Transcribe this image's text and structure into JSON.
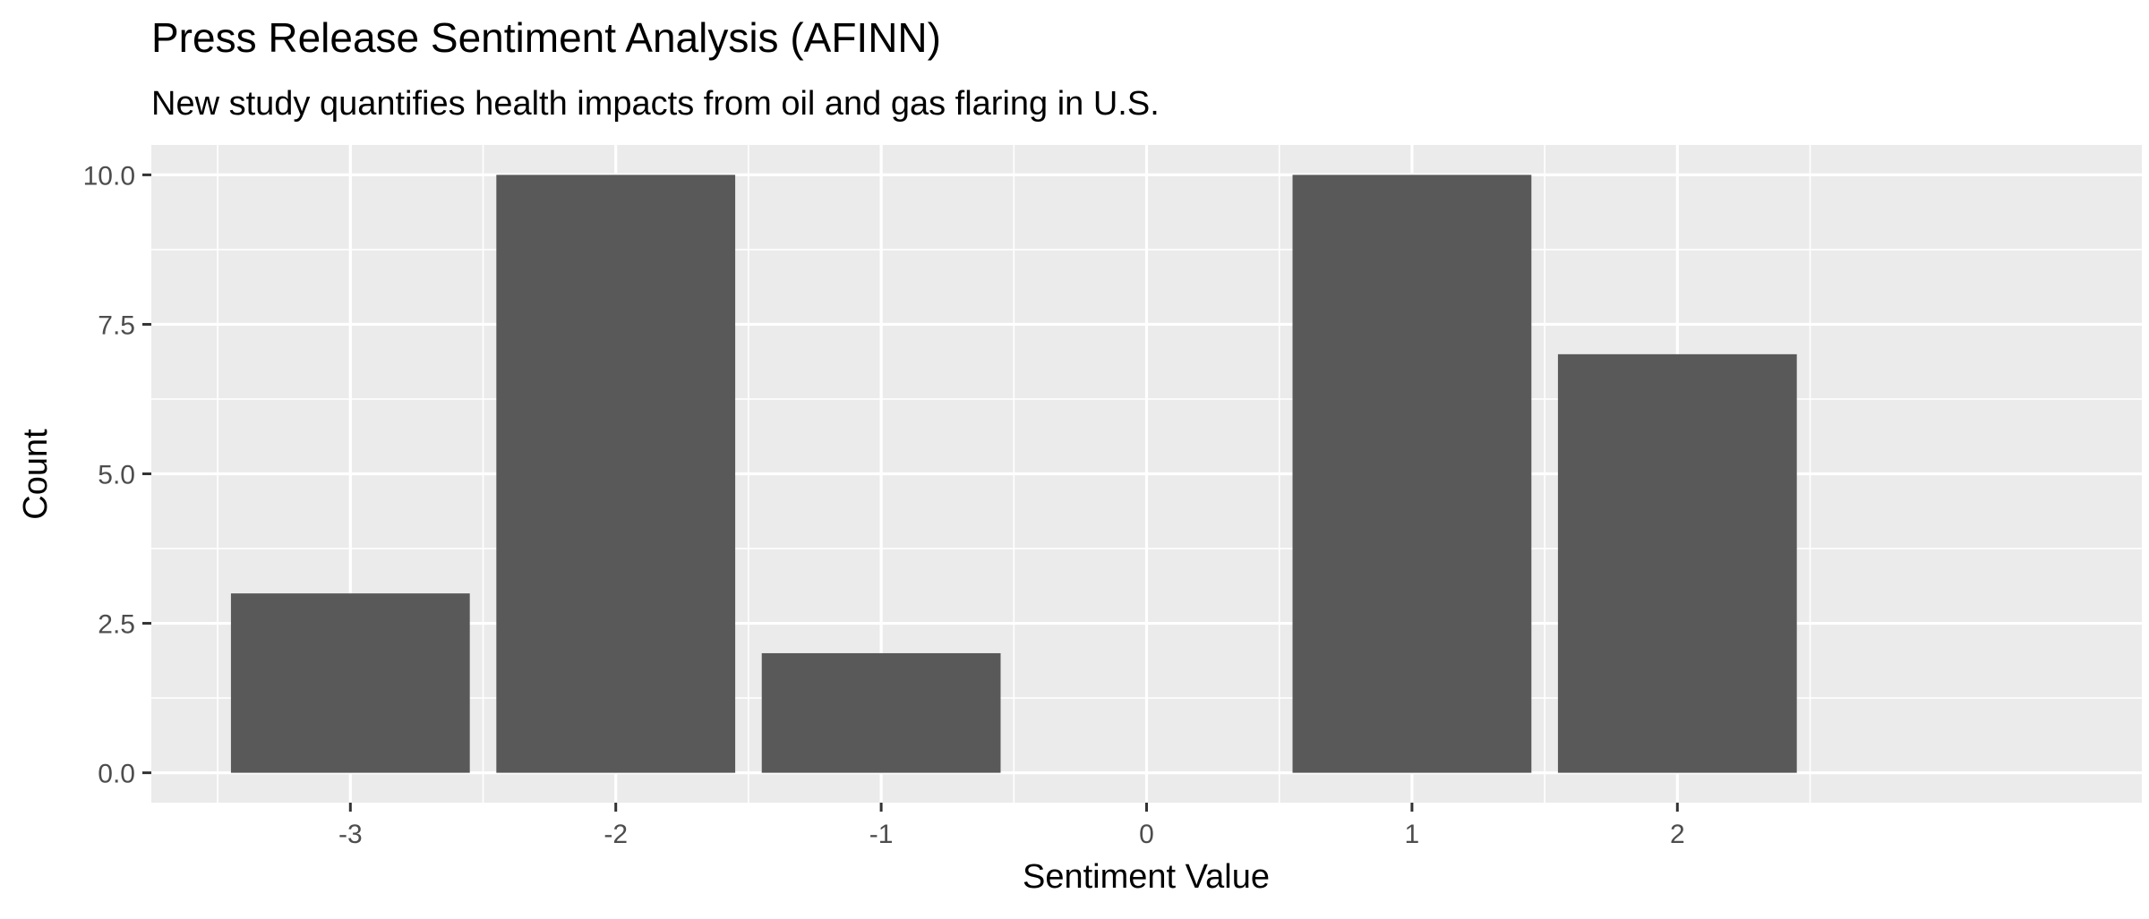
{
  "chart_data": {
    "type": "bar",
    "title": "Press Release Sentiment Analysis (AFINN)",
    "subtitle": "New study quantifies health impacts from oil and gas flaring in U.S.",
    "xlabel": "Sentiment Value",
    "ylabel": "Count",
    "x": [
      -3,
      -2,
      -1,
      1,
      2
    ],
    "values": [
      3,
      10,
      2,
      10,
      7
    ],
    "xticks": [
      -3,
      -2,
      -1,
      0,
      1,
      2
    ],
    "xtick_labels": [
      "-3",
      "-2",
      "-1",
      "0",
      "1",
      "2"
    ],
    "yticks": [
      0,
      2.5,
      5,
      7.5,
      10
    ],
    "ytick_labels": [
      "0.0",
      "2.5",
      "5.0",
      "7.5",
      "10.0"
    ],
    "xlim": [
      -3.75,
      3.75
    ],
    "ylim": [
      -0.5,
      10.5
    ],
    "grid": true,
    "colors": {
      "panel": "#EBEBEB",
      "grid": "#FFFFFF",
      "bar": "#595959",
      "tick_text": "#4D4D4D",
      "axis_text": "#000000"
    }
  }
}
